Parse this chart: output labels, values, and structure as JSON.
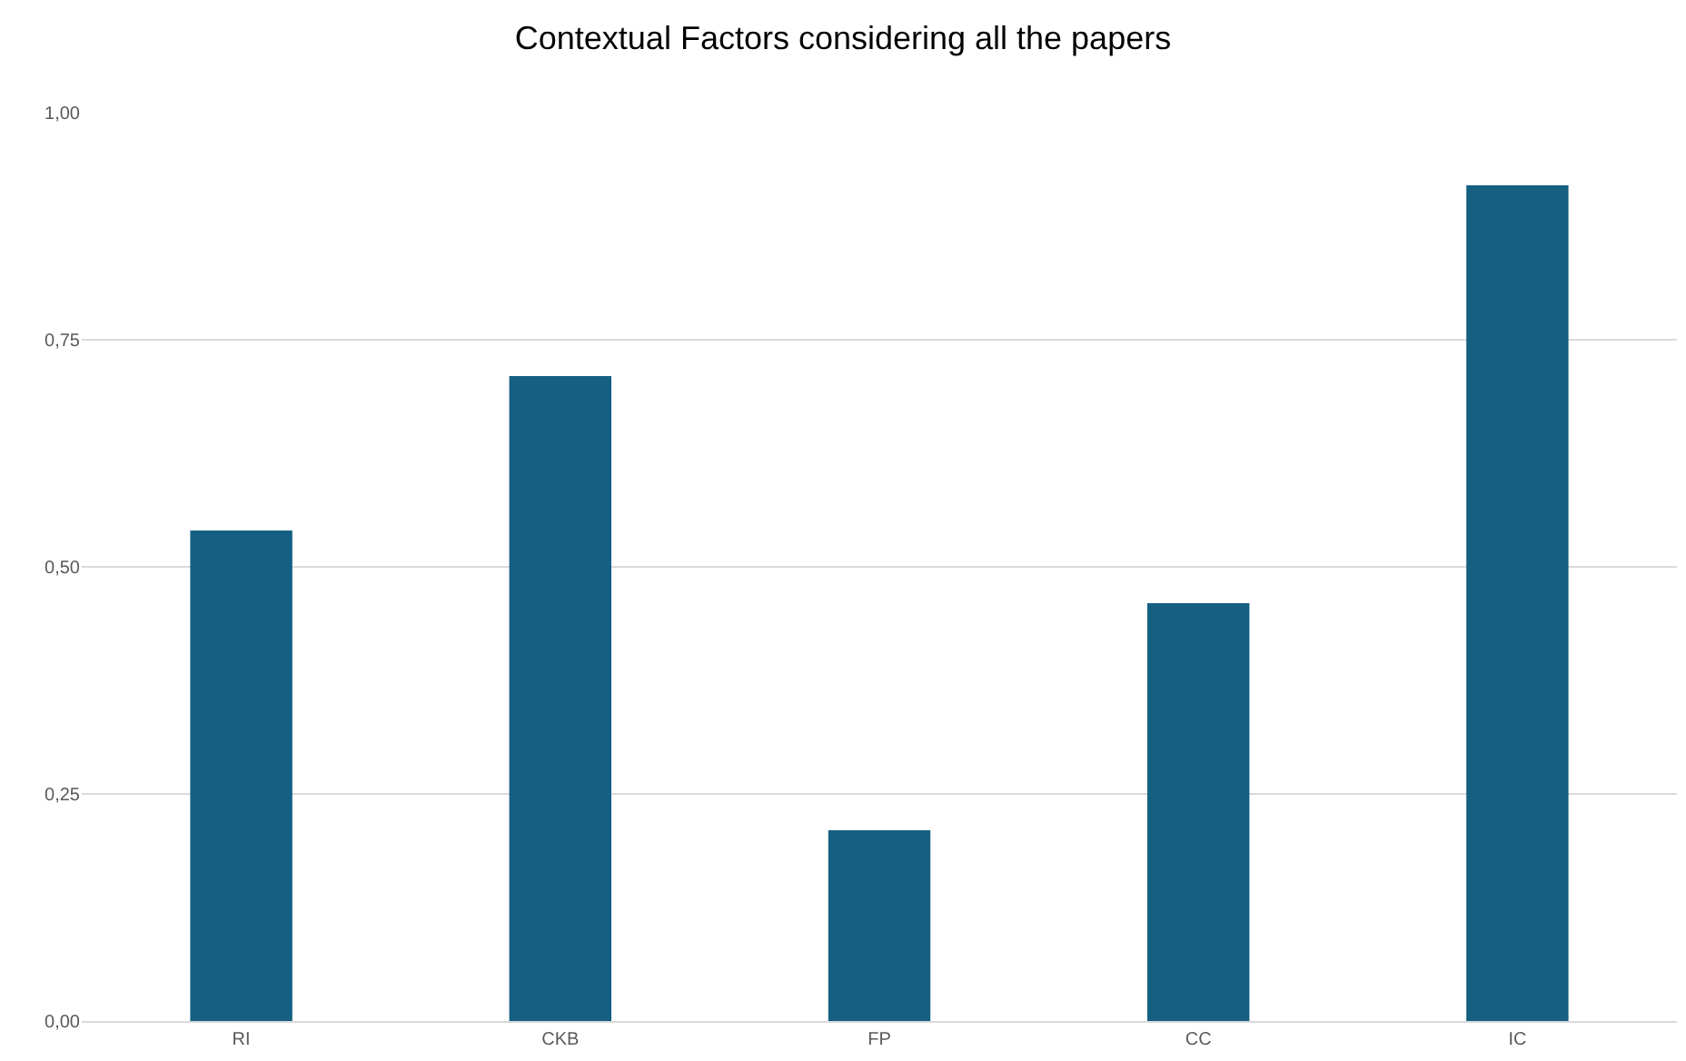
{
  "chart_data": {
    "type": "bar",
    "title": "Contextual Factors considering all the papers",
    "categories": [
      "RI",
      "CKB",
      "FP",
      "CC",
      "IC"
    ],
    "values": [
      0.54,
      0.71,
      0.21,
      0.46,
      0.92
    ],
    "color": "#155f82",
    "ylim": [
      0,
      1
    ],
    "yticks": [
      {
        "value": 0,
        "label": "0,00"
      },
      {
        "value": 0.25,
        "label": "0,25"
      },
      {
        "value": 0.5,
        "label": "0,50"
      },
      {
        "value": 0.75,
        "label": "0,75"
      },
      {
        "value": 1,
        "label": "1,00"
      }
    ],
    "grid": "y",
    "legend": false
  }
}
